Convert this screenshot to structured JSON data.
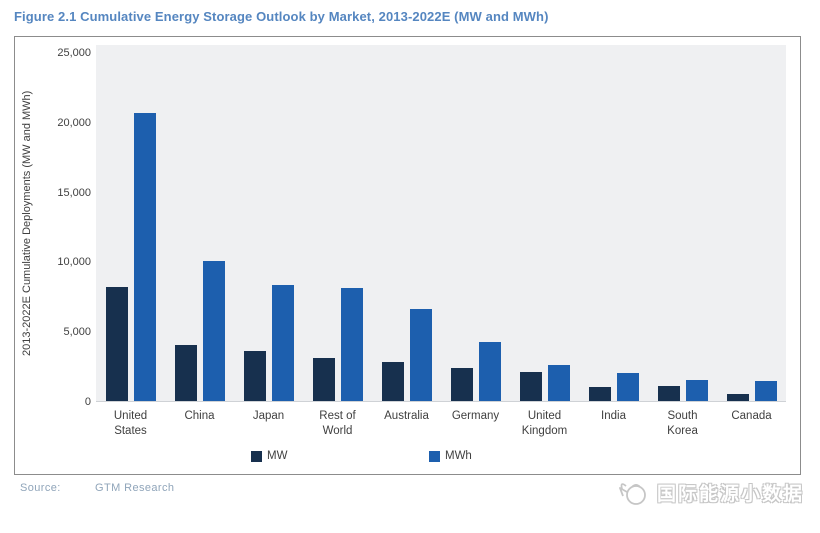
{
  "title": "Figure 2.1  Cumulative Energy Storage Outlook by Market, 2013-2022E (MW and MWh)",
  "source": {
    "label": "Source:",
    "value": "GTM Research"
  },
  "watermark": {
    "text": "国际能源小数据",
    "icon": "kettle-icon"
  },
  "colors": {
    "title": "#5586c0",
    "mw": "#17304e",
    "mwh": "#1d5fae",
    "plot_background": "#eff0f2",
    "axis_text": "#404040",
    "source_text": "#90a5ba",
    "border": "#8c8c8c"
  },
  "chart_data": {
    "type": "bar",
    "title": "Cumulative Energy Storage Outlook by Market, 2013-2022E",
    "xlabel": "",
    "ylabel": "2013-2022E Cumulative Deployments (MW and MWh)",
    "ylim": [
      0,
      25000
    ],
    "grid": false,
    "legend_position": "bottom",
    "yticks": [
      {
        "value": 0,
        "label": "0"
      },
      {
        "value": 5000,
        "label": "5,000"
      },
      {
        "value": 10000,
        "label": "10,000"
      },
      {
        "value": 15000,
        "label": "15,000"
      },
      {
        "value": 20000,
        "label": "20,000"
      },
      {
        "value": 25000,
        "label": "25,000"
      }
    ],
    "categories": [
      "United States",
      "China",
      "Japan",
      "Rest of World",
      "Australia",
      "Germany",
      "United Kingdom",
      "India",
      "South Korea",
      "Canada"
    ],
    "series": [
      {
        "name": "MW",
        "color": "#17304e",
        "values": [
          8200,
          4000,
          3600,
          3100,
          2800,
          2400,
          2100,
          1000,
          1100,
          500
        ]
      },
      {
        "name": "MWh",
        "color": "#1d5fae",
        "values": [
          20600,
          10000,
          8300,
          8100,
          6600,
          4200,
          2600,
          2000,
          1500,
          1400
        ]
      }
    ]
  }
}
